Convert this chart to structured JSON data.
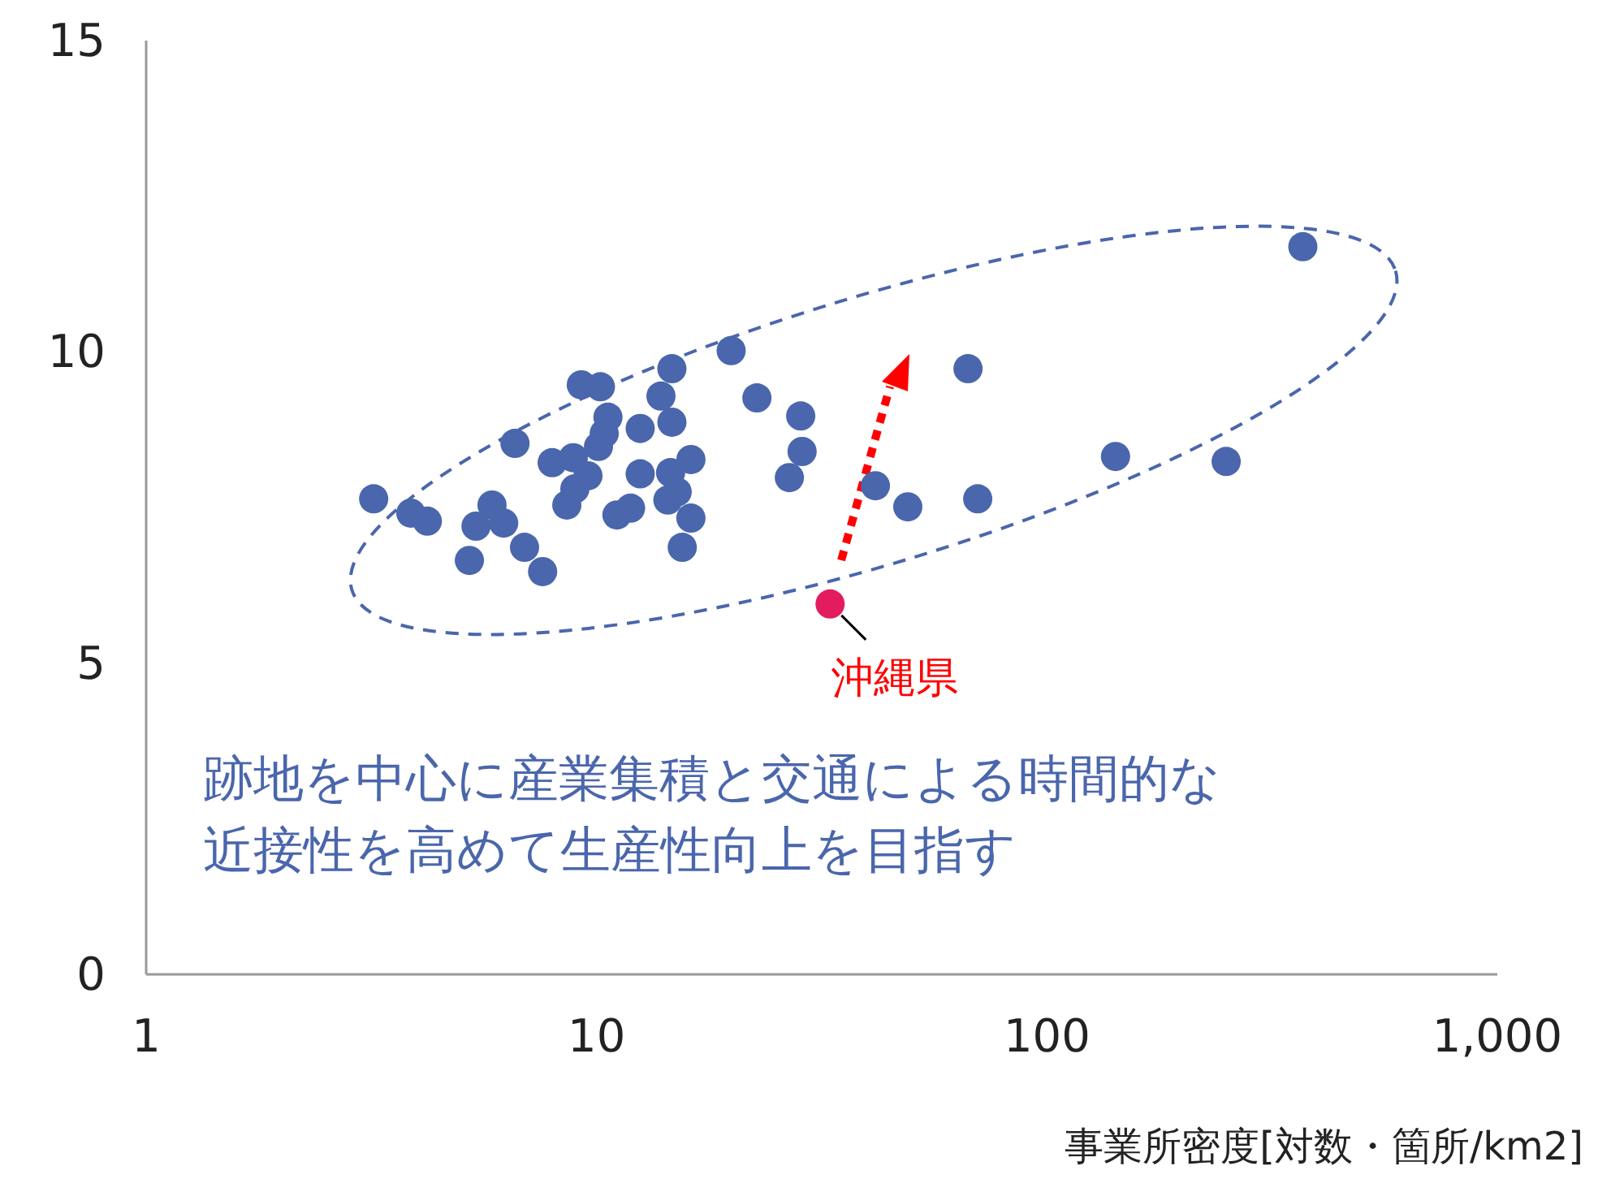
{
  "chart_data": {
    "type": "scatter",
    "xlabel": "事業所密度[対数・箇所/km2]",
    "log": "x",
    "xlim": [
      1,
      1000
    ],
    "xticks": [
      1,
      10,
      100,
      {
        "value": 1000,
        "label": "1,000"
      }
    ],
    "ylim": [
      0,
      15
    ],
    "yticks": [
      0,
      5,
      10,
      15
    ],
    "grid": false,
    "marker": "circle",
    "series": [
      {
        "color": "#4a66ac",
        "x": [
          3.2,
          3.87,
          4.21,
          5.22,
          5.4,
          5.86,
          6.22,
          6.59,
          6.92,
          7.59,
          7.97,
          8.59,
          8.88,
          8.95,
          9.57,
          9.25,
          10.2,
          10.1,
          10.4,
          10.6,
          11.1,
          11.9,
          12.5,
          12.5,
          13.9,
          14.7,
          14.7,
          14.6,
          16.2,
          14.4,
          15.1,
          16.2,
          15.5,
          19.9,
          22.7,
          28.4,
          28.6,
          26.8,
          41.6,
          49.1,
          66.8,
          70.2,
          142,
          250,
          370
        ],
        "values": [
          7.64,
          7.41,
          7.28,
          6.65,
          7.2,
          7.54,
          7.25,
          8.53,
          6.86,
          6.47,
          8.22,
          7.54,
          8.3,
          7.8,
          8.01,
          9.47,
          9.44,
          8.48,
          8.69,
          8.95,
          7.38,
          7.49,
          8.04,
          8.77,
          9.29,
          9.73,
          8.87,
          8.06,
          8.27,
          7.62,
          7.75,
          7.33,
          6.86,
          10.02,
          9.26,
          8.97,
          8.4,
          7.98,
          7.85,
          7.51,
          9.73,
          7.64,
          8.32,
          8.24,
          11.69
        ]
      },
      {
        "color": "#e31c5f",
        "x": [
          33
        ],
        "values": [
          5.95
        ]
      }
    ],
    "annotations": [
      {
        "text": "沖縄県",
        "x": 33,
        "y": 5.95
      },
      "跡地を中心に産業集積と交通による時間的な近接性を高めて生産性向上を目指す"
    ]
  }
}
